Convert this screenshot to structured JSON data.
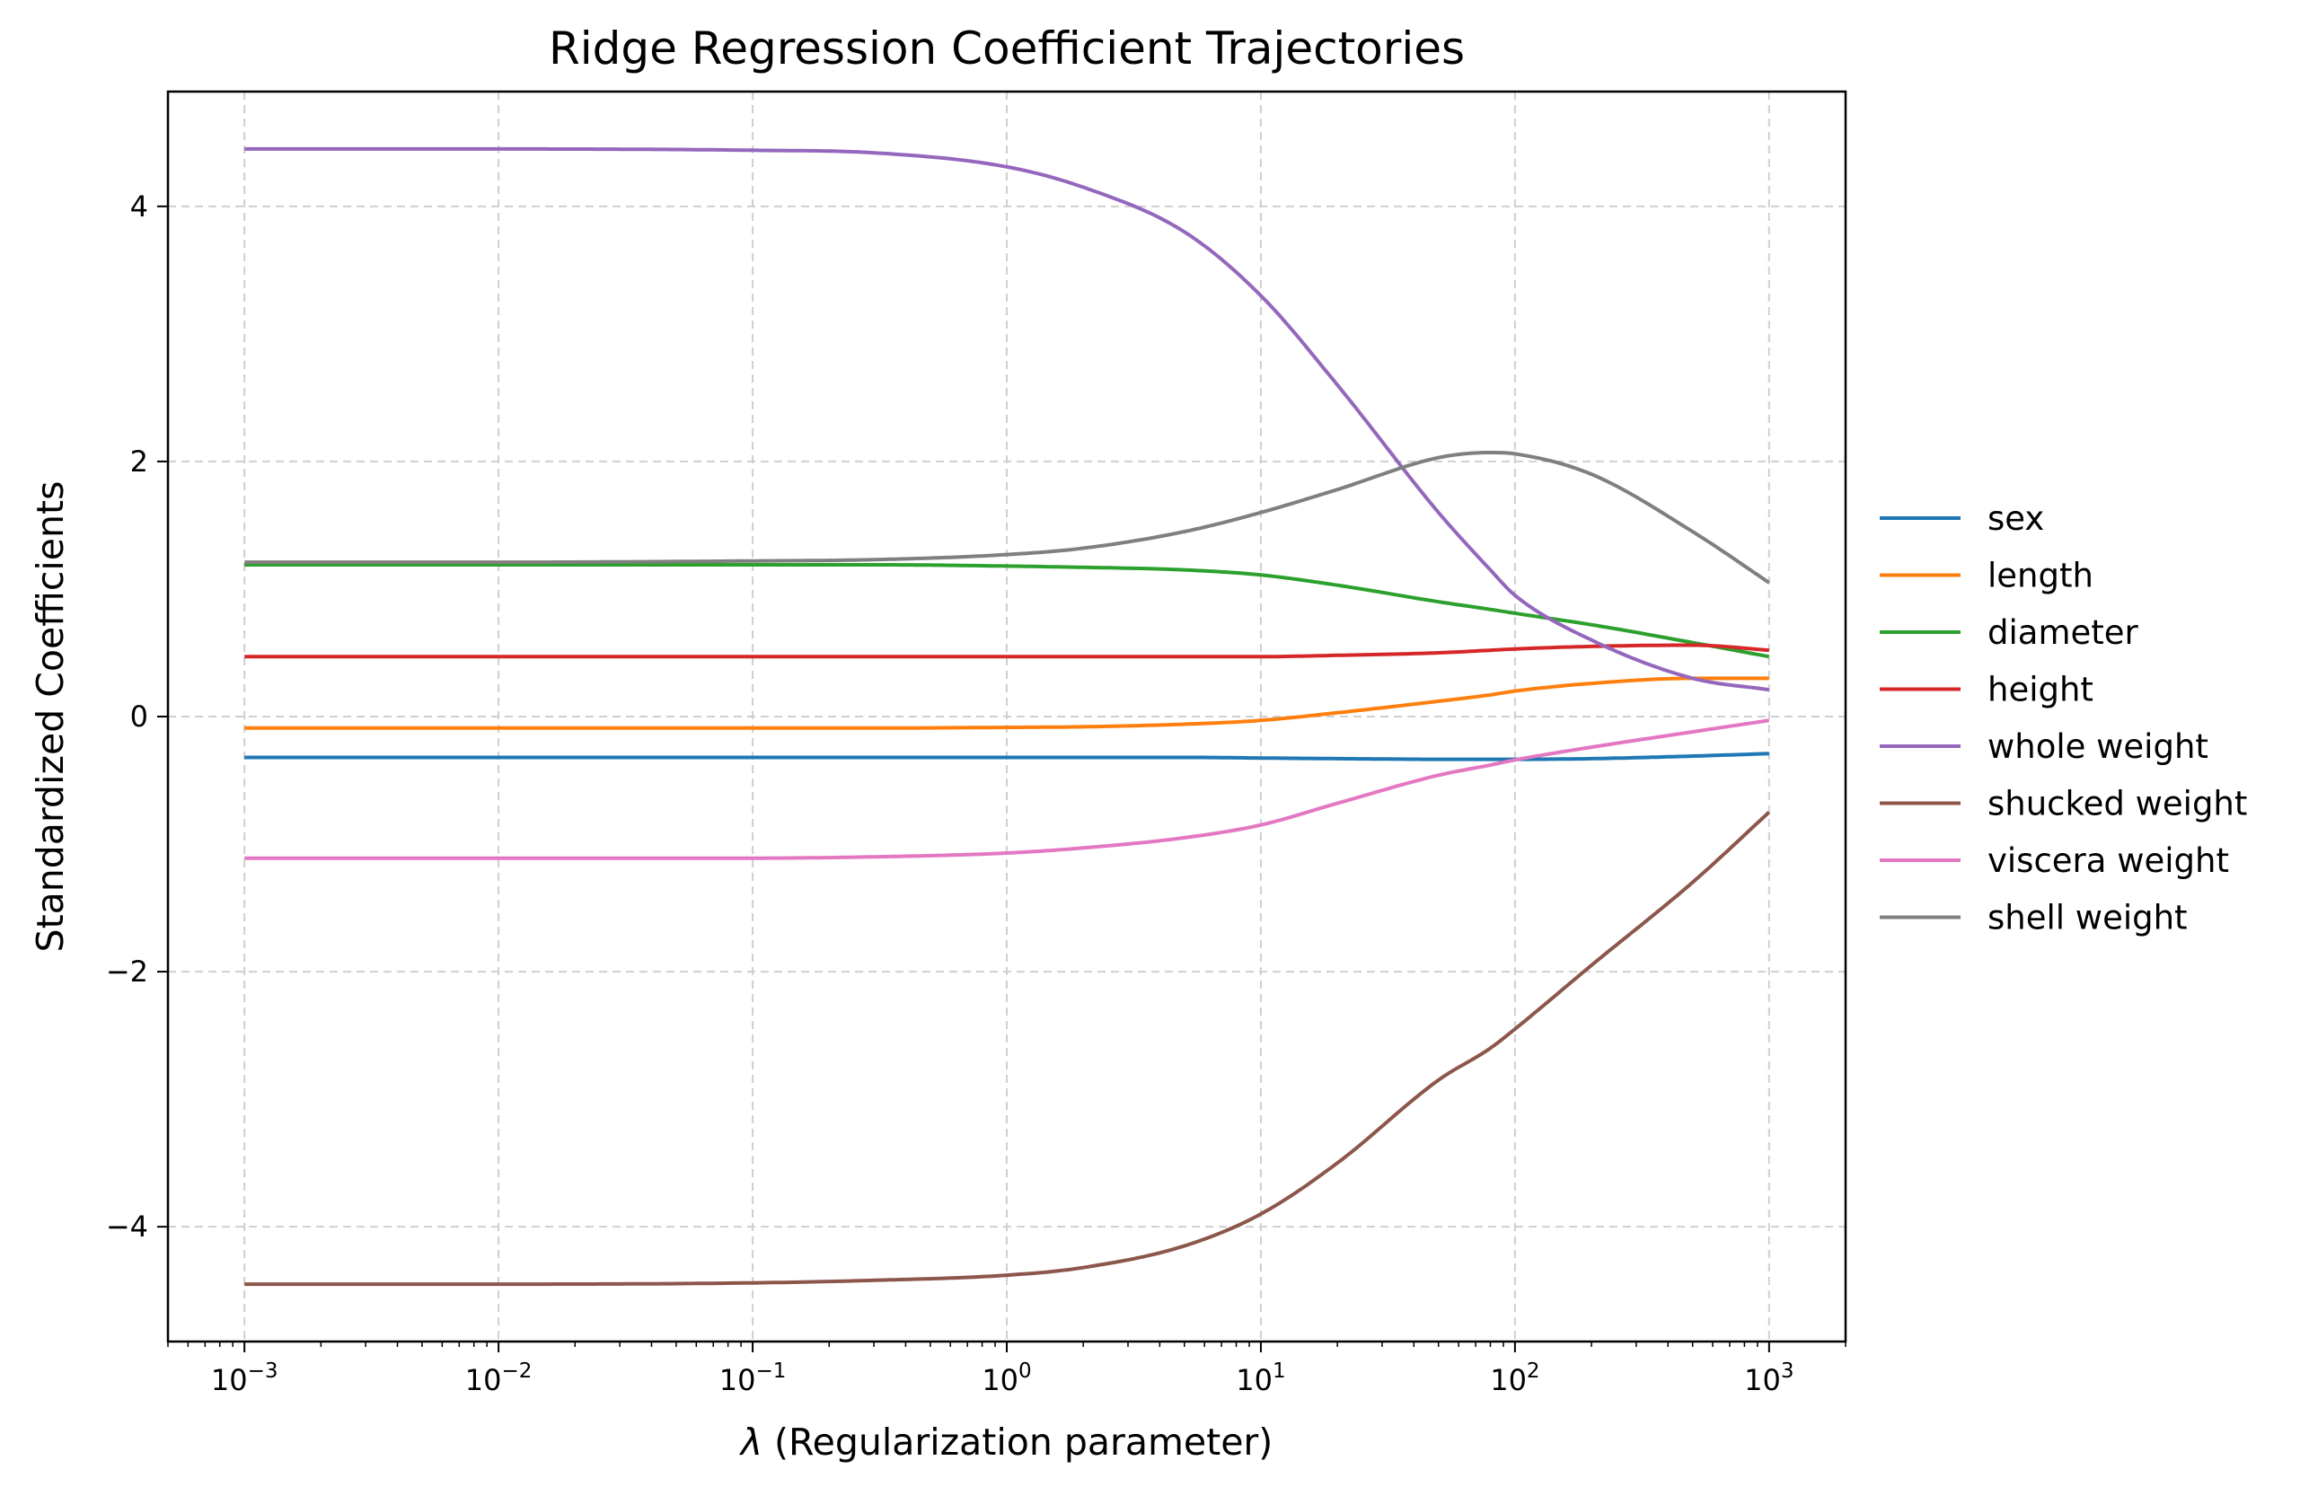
{
  "chart_data": {
    "type": "line",
    "title": "Ridge Regression Coefficient Trajectories",
    "xlabel_symbol": "λ",
    "xlabel": " (Regularization parameter)",
    "ylabel": "Standardized Coefficients",
    "xscale": "log",
    "xlim": [
      0.0005,
      2000
    ],
    "ylim": [
      -4.9,
      4.9
    ],
    "grid": true,
    "legend_position": "outside right",
    "x_ticks": [
      {
        "value": 0.001,
        "base": "10",
        "exp": "−3"
      },
      {
        "value": 0.01,
        "base": "10",
        "exp": "−2"
      },
      {
        "value": 0.1,
        "base": "10",
        "exp": "−1"
      },
      {
        "value": 1,
        "base": "10",
        "exp": "0"
      },
      {
        "value": 10,
        "base": "10",
        "exp": "1"
      },
      {
        "value": 100,
        "base": "10",
        "exp": "2"
      },
      {
        "value": 1000,
        "base": "10",
        "exp": "3"
      }
    ],
    "y_ticks": [
      {
        "value": 4,
        "label": "4"
      },
      {
        "value": 2,
        "label": "2"
      },
      {
        "value": 0,
        "label": "0"
      },
      {
        "value": -2,
        "label": "−2"
      },
      {
        "value": -4,
        "label": "−4"
      }
    ],
    "x": [
      0.001,
      0.01,
      0.1,
      0.3,
      1,
      2,
      5,
      10,
      20,
      50,
      80,
      100,
      200,
      500,
      1000
    ],
    "series": [
      {
        "name": "sex",
        "color": "#1f77b4",
        "values": [
          -0.32,
          -0.32,
          -0.32,
          -0.32,
          -0.32,
          -0.32,
          -0.32,
          -0.325,
          -0.33,
          -0.335,
          -0.335,
          -0.335,
          -0.33,
          -0.31,
          -0.29
        ]
      },
      {
        "name": "length",
        "color": "#ff7f0e",
        "values": [
          -0.09,
          -0.09,
          -0.09,
          -0.09,
          -0.085,
          -0.08,
          -0.06,
          -0.03,
          0.03,
          0.12,
          0.17,
          0.2,
          0.26,
          0.3,
          0.3
        ]
      },
      {
        "name": "diameter",
        "color": "#2ca02c",
        "values": [
          1.19,
          1.19,
          1.19,
          1.19,
          1.18,
          1.17,
          1.15,
          1.11,
          1.03,
          0.9,
          0.84,
          0.81,
          0.72,
          0.58,
          0.47
        ]
      },
      {
        "name": "height",
        "color": "#d62728",
        "values": [
          0.47,
          0.47,
          0.47,
          0.47,
          0.47,
          0.47,
          0.47,
          0.47,
          0.48,
          0.5,
          0.52,
          0.53,
          0.55,
          0.56,
          0.52
        ]
      },
      {
        "name": "whole weight",
        "color": "#9467bd",
        "values": [
          4.45,
          4.45,
          4.44,
          4.42,
          4.31,
          4.15,
          3.8,
          3.3,
          2.6,
          1.6,
          1.15,
          0.95,
          0.6,
          0.3,
          0.21
        ]
      },
      {
        "name": "shucked weight",
        "color": "#8c564b",
        "values": [
          -4.45,
          -4.45,
          -4.44,
          -4.42,
          -4.38,
          -4.32,
          -4.15,
          -3.9,
          -3.5,
          -2.85,
          -2.6,
          -2.45,
          -1.95,
          -1.3,
          -0.75
        ]
      },
      {
        "name": "viscera weight",
        "color": "#e377c2",
        "values": [
          -1.11,
          -1.11,
          -1.11,
          -1.1,
          -1.07,
          -1.03,
          -0.95,
          -0.85,
          -0.68,
          -0.46,
          -0.38,
          -0.34,
          -0.24,
          -0.12,
          -0.03
        ]
      },
      {
        "name": "shell weight",
        "color": "#7f7f7f",
        "values": [
          1.21,
          1.21,
          1.22,
          1.23,
          1.27,
          1.32,
          1.45,
          1.6,
          1.78,
          2.03,
          2.07,
          2.06,
          1.9,
          1.45,
          1.05
        ]
      }
    ]
  }
}
